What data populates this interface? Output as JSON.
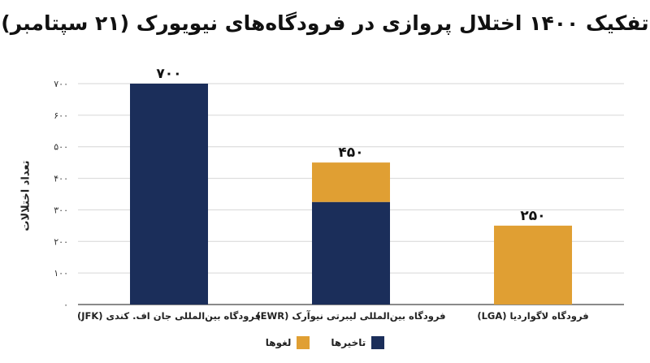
{
  "chart_data": {
    "type": "bar",
    "stacked": true,
    "title": "تفکیک ۱۴۰۰ اختلال پروازی در فرودگاه‌های نیویورک (۲۱ سپتامبر)",
    "ylabel": "تعداد اختلالات",
    "xlabel": "",
    "ylim": [
      0,
      700
    ],
    "yticks": [
      0,
      100,
      200,
      300,
      400,
      500,
      600,
      700
    ],
    "ytick_labels": [
      "۰",
      "۱۰۰",
      "۲۰۰",
      "۳۰۰",
      "۴۰۰",
      "۵۰۰",
      "۶۰۰",
      "۷۰۰"
    ],
    "grid": true,
    "legend_position": "bottom",
    "categories": [
      "فرودگاه بین‌المللی جان اف. کندی (JFK)",
      "فرودگاه بین‌المللی لیبرتی نیوآرک (EWR)",
      "فرودگاه لاگواردیا (LGA)"
    ],
    "series": [
      {
        "name": "تاخیرها",
        "color": "#1b2e5a",
        "values": [
          700,
          325,
          0
        ]
      },
      {
        "name": "لغوها",
        "color": "#e09f33",
        "values": [
          0,
          125,
          250
        ]
      }
    ],
    "totals": [
      700,
      450,
      250
    ],
    "total_labels": [
      "۷۰۰",
      "۴۵۰",
      "۲۵۰"
    ]
  }
}
